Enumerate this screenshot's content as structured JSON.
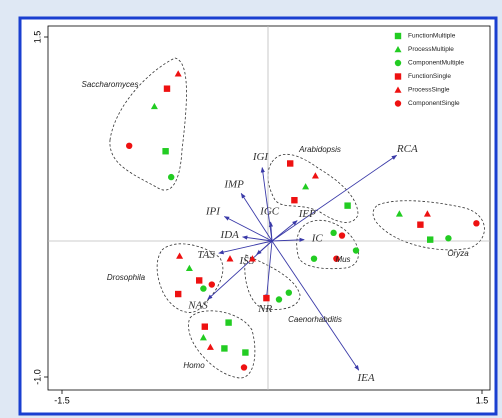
{
  "chart_data": {
    "type": "scatter",
    "xlim": [
      -1.5,
      1.5
    ],
    "xticks": [
      -1.5,
      1.5
    ],
    "ylim": [
      -1.0,
      1.5
    ],
    "yticks": [
      {
        "value": -1.0,
        "label": "-1.0"
      },
      1.5
    ],
    "series": [
      {
        "name": "FunctionMultiple",
        "color": "#22cc22",
        "marker": "square",
        "x": [
          -0.76,
          0.54,
          1.13,
          -0.31,
          -0.34,
          -0.19
        ],
        "values": [
          0.66,
          0.26,
          0.01,
          -0.6,
          -0.79,
          -0.82
        ]
      },
      {
        "name": "ProcessMultiple",
        "color": "#22cc22",
        "marker": "triangle",
        "x": [
          -0.84,
          0.24,
          0.91,
          -0.59,
          -0.49
        ],
        "values": [
          0.99,
          0.4,
          0.2,
          -0.2,
          -0.71
        ]
      },
      {
        "name": "ComponentMultiple",
        "color": "#22cc22",
        "marker": "circle",
        "x": [
          -0.72,
          0.44,
          0.6,
          0.3,
          1.26,
          -0.49,
          0.05,
          0.12
        ],
        "values": [
          0.47,
          0.06,
          -0.07,
          -0.13,
          0.02,
          -0.35,
          -0.43,
          -0.38
        ]
      },
      {
        "name": "FunctionSingle",
        "color": "#ee1111",
        "marker": "square",
        "x": [
          -0.75,
          0.13,
          0.16,
          1.06,
          -0.52,
          -0.67,
          -0.04,
          -0.48
        ],
        "values": [
          1.12,
          0.57,
          0.3,
          0.12,
          -0.29,
          -0.39,
          -0.42,
          -0.63
        ]
      },
      {
        "name": "ProcessSingle",
        "color": "#ee1111",
        "marker": "triangle",
        "x": [
          -0.67,
          0.31,
          1.11,
          -0.66,
          -0.3,
          -0.14,
          -0.44
        ],
        "values": [
          1.23,
          0.48,
          0.2,
          -0.11,
          -0.13,
          -0.13,
          -0.78
        ]
      },
      {
        "name": "ComponentSingle",
        "color": "#ee1111",
        "marker": "circle",
        "x": [
          -1.02,
          0.5,
          0.46,
          1.46,
          -0.43,
          -0.2
        ],
        "values": [
          0.7,
          0.04,
          -0.13,
          0.13,
          -0.32,
          -0.93
        ]
      }
    ],
    "vectors": [
      {
        "name": "RCA",
        "x": 0.89,
        "y": 0.63
      },
      {
        "name": "IGI",
        "x": -0.07,
        "y": 0.54
      },
      {
        "name": "IMP",
        "x": -0.22,
        "y": 0.35
      },
      {
        "name": "IPI",
        "x": -0.34,
        "y": 0.18
      },
      {
        "name": "IGC",
        "x": -0.01,
        "y": 0.14
      },
      {
        "name": "IEP",
        "x": 0.18,
        "y": 0.15
      },
      {
        "name": "IC",
        "x": 0.23,
        "y": 0.01
      },
      {
        "name": "IDA",
        "x": -0.21,
        "y": 0.03
      },
      {
        "name": "TAS",
        "x": -0.38,
        "y": -0.09
      },
      {
        "name": "ISS",
        "x": -0.11,
        "y": -0.1
      },
      {
        "name": "NAS",
        "x": -0.46,
        "y": -0.43
      },
      {
        "name": "NR",
        "x": -0.04,
        "y": -0.43
      },
      {
        "name": "IEA",
        "x": 0.62,
        "y": -0.95
      }
    ],
    "groups": [
      "Saccharomyces",
      "Arabidopsis",
      "Mus",
      "Oryza",
      "Drosophila",
      "Caenorhabditis",
      "Homo"
    ]
  }
}
